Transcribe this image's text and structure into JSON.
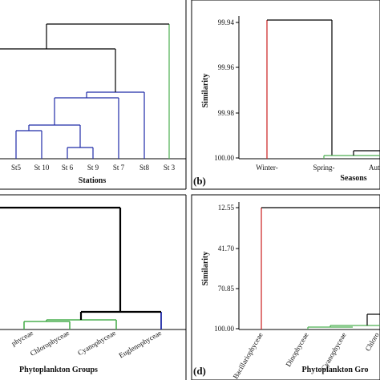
{
  "chart_data": [
    {
      "id": "a",
      "type": "dendrogram",
      "panel_label": "",
      "xlabel": "Stations",
      "ylabel": "",
      "leaves": [
        "St5",
        "St 10",
        "St 6",
        "St 9",
        "St 7",
        "St8",
        "St 3"
      ],
      "merges": [
        {
          "left": "St 6",
          "right": "St 9",
          "height": 0.18
        },
        {
          "left": "St5",
          "right": "St 10",
          "height": 0.36
        },
        {
          "left": "St5+St 10",
          "right": "St 6+St 9",
          "height": 0.39
        },
        {
          "left": "St5..St 9",
          "right": "St 7",
          "height": 0.55
        },
        {
          "left": "St5..St 7",
          "right": "St8",
          "height": 0.58
        },
        {
          "left": "St5..St8",
          "right": "St 3",
          "height": 1.0
        }
      ],
      "cluster_colors": {
        "St 3": "#4caf50",
        "others": "#1f2aa8",
        "upper": "#000000"
      }
    },
    {
      "id": "b",
      "type": "dendrogram",
      "panel_label": "(b)",
      "xlabel": "Seasons",
      "ylabel": "Similarity",
      "yticks": [
        "99.94",
        "99.96",
        "99.98",
        "100.00"
      ],
      "ylim": [
        99.94,
        100.0
      ],
      "y_reversed": true,
      "leaves": [
        "Winter-",
        "Spring-",
        "Aut"
      ],
      "merges": [
        {
          "left": "Spring-",
          "right": "Aut",
          "height": 99.999
        },
        {
          "left": "Spring-+Aut",
          "right": "Winter-",
          "height": 99.943
        }
      ],
      "cluster_colors": {
        "Winter-": "#cc1f1f",
        "Spring-+Aut": "#4caf50",
        "upper": "#000000"
      }
    },
    {
      "id": "c",
      "type": "dendrogram",
      "panel_label": "",
      "xlabel": "Phytoplankton Groups",
      "ylabel": "",
      "leaves": [
        "phyceae",
        "Chlorophyceae",
        "Cyanophyceae",
        "Euglenophyceae"
      ],
      "merges": [
        {
          "left": "phyceae",
          "right": "Chlorophyceae",
          "height": 0.07
        },
        {
          "left": "phyceae+Chlorophyceae",
          "right": "Cyanophyceae",
          "height": 0.09
        },
        {
          "left": "first three",
          "right": "Euglenophyceae",
          "height": 0.17
        },
        {
          "left": "all",
          "right": "outgroup",
          "height": 1.0
        }
      ],
      "cluster_colors": {
        "green_group": "#4caf50",
        "Euglenophyceae": "#1f2aa8",
        "upper": "#000000"
      }
    },
    {
      "id": "d",
      "type": "dendrogram",
      "panel_label": "(d)",
      "xlabel": "Phytoplankton Gro",
      "ylabel": "Similarity",
      "yticks": [
        "12.55",
        "41.70",
        "70.85",
        "100.00"
      ],
      "ylim": [
        12.55,
        100.0
      ],
      "y_reversed": true,
      "leaves": [
        "Bacillariophyceae",
        "Dinophyceae",
        "Cyanophyceae",
        "Chloro"
      ],
      "merges": [
        {
          "left": "Dinophyceae",
          "right": "Cyanophyceae",
          "height": 99.5
        },
        {
          "left": "Dinophyceae+Cyanophyceae",
          "right": "Chloro",
          "height": 98.9
        },
        {
          "left": "Dino..Chloro",
          "right": "next",
          "height": 95.0
        },
        {
          "left": "rest",
          "right": "Bacillariophyceae",
          "height": 12.55
        }
      ],
      "cluster_colors": {
        "Bacillariophyceae": "#cc1f1f",
        "group": "#4caf50",
        "upper": "#000000"
      }
    }
  ]
}
